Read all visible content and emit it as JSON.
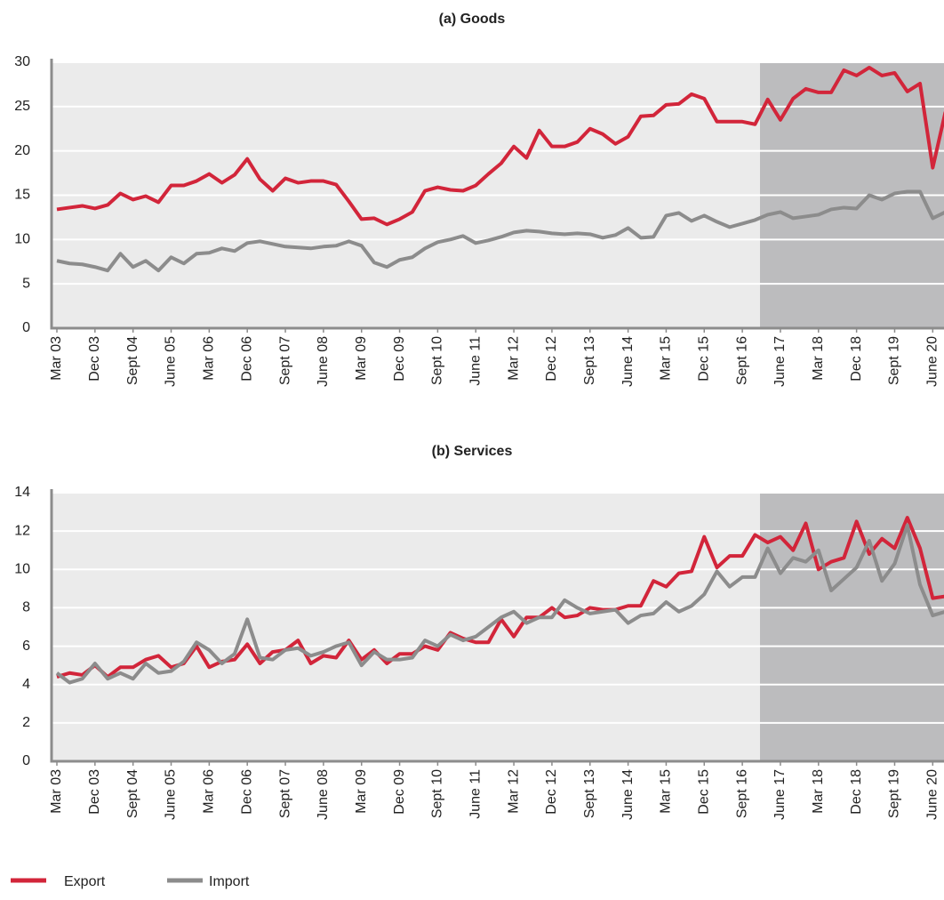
{
  "chart_data": [
    {
      "type": "line",
      "title": "(a) Goods",
      "categories": [
        "Mar 03",
        null,
        null,
        "Dec 03",
        null,
        null,
        "Sept 04",
        null,
        null,
        "June 05",
        null,
        null,
        "Mar 06",
        null,
        null,
        "Dec 06",
        null,
        null,
        "Sept 07",
        null,
        null,
        "June 08",
        null,
        null,
        "Mar 09",
        null,
        null,
        "Dec 09",
        null,
        null,
        "Sept 10",
        null,
        null,
        "June 11",
        null,
        null,
        "Mar 12",
        null,
        null,
        "Dec 12",
        null,
        null,
        "Sept 13",
        null,
        null,
        "June 14",
        null,
        null,
        "Mar 15",
        null,
        null,
        "Dec 15",
        null,
        null,
        "Sept 16",
        null,
        null,
        "June 17",
        null,
        null,
        "Mar 18",
        null,
        null,
        "Dec 18",
        null,
        null,
        "Sept 19",
        null,
        null,
        "June 20",
        null
      ],
      "series": [
        {
          "name": "Export",
          "color": "#d2253a",
          "values": [
            13.4,
            13.6,
            13.8,
            13.5,
            13.9,
            15.2,
            14.5,
            14.9,
            14.2,
            16.1,
            16.1,
            16.6,
            17.4,
            16.4,
            17.3,
            19.1,
            16.8,
            15.5,
            16.9,
            16.4,
            16.6,
            16.6,
            16.2,
            14.3,
            12.3,
            12.4,
            11.7,
            12.3,
            13.1,
            15.5,
            15.9,
            15.6,
            15.5,
            16.1,
            17.4,
            18.6,
            20.5,
            19.2,
            22.3,
            20.5,
            20.5,
            21.0,
            22.5,
            21.9,
            20.8,
            21.6,
            23.9,
            24.0,
            25.2,
            25.3,
            26.4,
            25.9,
            23.3,
            23.3,
            23.3,
            23.0,
            25.8,
            23.5,
            25.9,
            27.0,
            26.6,
            26.6,
            29.1,
            28.5,
            29.4,
            28.5,
            28.8,
            26.7,
            27.6,
            18.1,
            24.4
          ]
        },
        {
          "name": "Import",
          "color": "#8c8c8c",
          "values": [
            7.6,
            7.3,
            7.2,
            6.9,
            6.5,
            8.4,
            6.9,
            7.6,
            6.5,
            8.0,
            7.3,
            8.4,
            8.5,
            9.0,
            8.7,
            9.6,
            9.8,
            9.5,
            9.2,
            9.1,
            9.0,
            9.2,
            9.3,
            9.8,
            9.3,
            7.4,
            6.9,
            7.7,
            8.0,
            9.0,
            9.7,
            10.0,
            10.4,
            9.6,
            9.9,
            10.3,
            10.8,
            11.0,
            10.9,
            10.7,
            10.6,
            10.7,
            10.6,
            10.2,
            10.5,
            11.3,
            10.2,
            10.3,
            12.7,
            13.0,
            12.1,
            12.7,
            12.0,
            11.4,
            11.8,
            12.2,
            12.8,
            13.1,
            12.4,
            12.6,
            12.8,
            13.4,
            13.6,
            13.5,
            15.0,
            14.5,
            15.2,
            15.4,
            15.4,
            12.4,
            13.1
          ]
        }
      ],
      "ylim": [
        0,
        30
      ],
      "yticks": [
        0,
        5,
        10,
        15,
        20,
        25,
        30
      ],
      "grid": true
    },
    {
      "type": "line",
      "title": "(b) Services",
      "categories": [
        "Mar 03",
        null,
        null,
        "Dec 03",
        null,
        null,
        "Sept 04",
        null,
        null,
        "June 05",
        null,
        null,
        "Mar 06",
        null,
        null,
        "Dec 06",
        null,
        null,
        "Sept 07",
        null,
        null,
        "June 08",
        null,
        null,
        "Mar 09",
        null,
        null,
        "Dec 09",
        null,
        null,
        "Sept 10",
        null,
        null,
        "June 11",
        null,
        null,
        "Mar 12",
        null,
        null,
        "Dec 12",
        null,
        null,
        "Sept 13",
        null,
        null,
        "June 14",
        null,
        null,
        "Mar 15",
        null,
        null,
        "Dec 15",
        null,
        null,
        "Sept 16",
        null,
        null,
        "June 17",
        null,
        null,
        "Mar 18",
        null,
        null,
        "Dec 18",
        null,
        null,
        "Sept 19",
        null,
        null,
        "June 20",
        null
      ],
      "series": [
        {
          "color": "#d2253a",
          "values": [
            4.4,
            4.6,
            4.5,
            5.0,
            4.4,
            4.9,
            4.9,
            5.3,
            5.5,
            4.9,
            5.1,
            6.0,
            4.9,
            5.2,
            5.3,
            6.1,
            5.1,
            5.7,
            5.8,
            6.3,
            5.1,
            5.5,
            5.4,
            6.3,
            5.3,
            5.8,
            5.1,
            5.6,
            5.6,
            6.0,
            5.8,
            6.7,
            6.4,
            6.2,
            6.2,
            7.4,
            6.5,
            7.5,
            7.5,
            8.0,
            7.5,
            7.6,
            8.0,
            7.9,
            7.9,
            8.1,
            8.1,
            9.4,
            9.1,
            9.8,
            9.9,
            11.7,
            10.1,
            10.7,
            10.7,
            11.8,
            11.4,
            11.7,
            11.0,
            12.4,
            10.0,
            10.4,
            10.6,
            12.5,
            10.8,
            11.6,
            11.1,
            12.7,
            11.1,
            8.5,
            8.6
          ]
        },
        {
          "color": "#8c8c8c",
          "values": [
            4.6,
            4.1,
            4.3,
            5.1,
            4.3,
            4.6,
            4.3,
            5.1,
            4.6,
            4.7,
            5.2,
            6.2,
            5.8,
            5.1,
            5.6,
            7.4,
            5.4,
            5.3,
            5.8,
            5.9,
            5.5,
            5.7,
            6.0,
            6.2,
            5.0,
            5.7,
            5.3,
            5.3,
            5.4,
            6.3,
            6.0,
            6.6,
            6.3,
            6.5,
            7.0,
            7.5,
            7.8,
            7.2,
            7.5,
            7.5,
            8.4,
            8.0,
            7.7,
            7.8,
            7.9,
            7.2,
            7.6,
            7.7,
            8.3,
            7.8,
            8.1,
            8.7,
            9.9,
            9.1,
            9.6,
            9.6,
            11.1,
            9.8,
            10.6,
            10.4,
            11.0,
            8.9,
            9.5,
            10.1,
            11.5,
            9.4,
            10.3,
            12.3,
            9.2,
            7.6,
            7.8
          ]
        }
      ],
      "ylim": [
        0,
        14
      ],
      "yticks": [
        0,
        2,
        4,
        6,
        8,
        10,
        12,
        14
      ],
      "grid": true
    }
  ]
}
